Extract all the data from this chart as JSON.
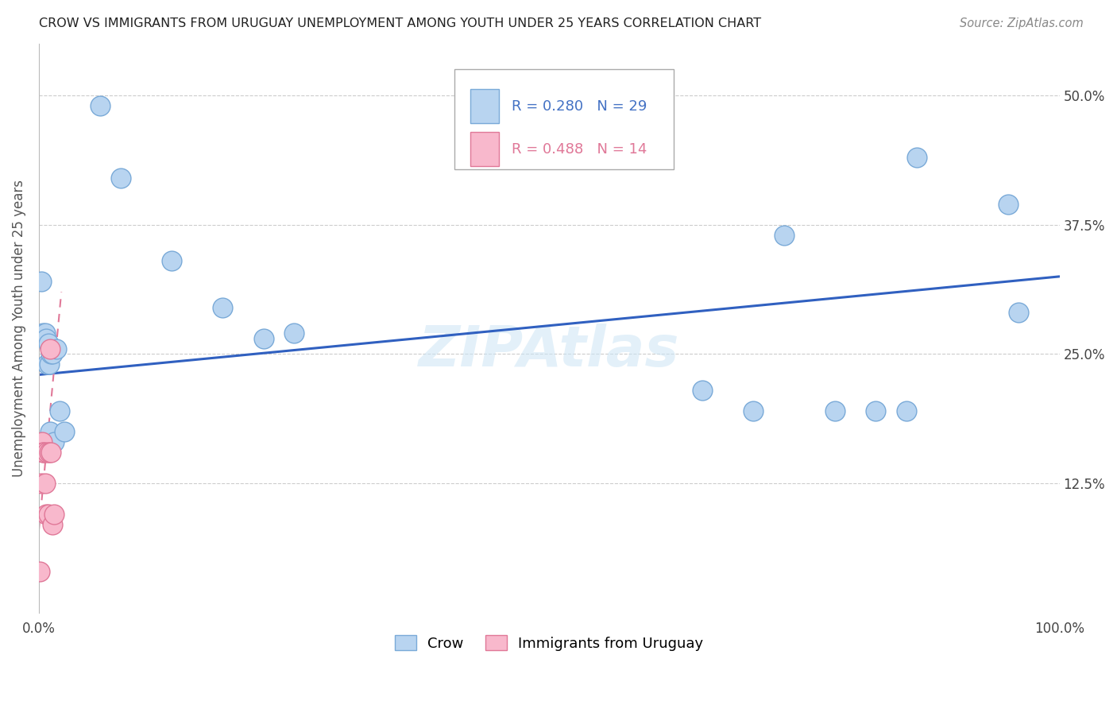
{
  "title": "CROW VS IMMIGRANTS FROM URUGUAY UNEMPLOYMENT AMONG YOUTH UNDER 25 YEARS CORRELATION CHART",
  "source": "Source: ZipAtlas.com",
  "ylabel": "Unemployment Among Youth under 25 years",
  "xlim": [
    0,
    1.0
  ],
  "ylim": [
    0,
    0.55
  ],
  "xticks": [
    0.0,
    0.25,
    0.5,
    0.75,
    1.0
  ],
  "xtick_labels": [
    "0.0%",
    "",
    "",
    "",
    "100.0%"
  ],
  "ytick_labels_right": [
    "12.5%",
    "25.0%",
    "37.5%",
    "50.0%"
  ],
  "ytick_vals_right": [
    0.125,
    0.25,
    0.375,
    0.5
  ],
  "legend_r1": "R = 0.280",
  "legend_n1": "N = 29",
  "legend_r2": "R = 0.488",
  "legend_n2": "N = 14",
  "crow_color": "#b8d4f0",
  "crow_edge_color": "#7aaad8",
  "immigrants_color": "#f8b8cc",
  "immigrants_edge_color": "#e07898",
  "line_color_crow": "#3060c0",
  "line_color_imm": "#e07898",
  "watermark": "ZIPAtlas",
  "background_color": "#ffffff",
  "crow_x": [
    0.002,
    0.004,
    0.006,
    0.007,
    0.008,
    0.009,
    0.01,
    0.011,
    0.012,
    0.013,
    0.015,
    0.017,
    0.02,
    0.025,
    0.06,
    0.08,
    0.13,
    0.18,
    0.22,
    0.25,
    0.65,
    0.7,
    0.73,
    0.78,
    0.82,
    0.85,
    0.86,
    0.95,
    0.96
  ],
  "crow_y": [
    0.32,
    0.27,
    0.27,
    0.265,
    0.24,
    0.26,
    0.24,
    0.175,
    0.25,
    0.25,
    0.165,
    0.255,
    0.195,
    0.175,
    0.49,
    0.42,
    0.34,
    0.295,
    0.265,
    0.27,
    0.215,
    0.195,
    0.365,
    0.195,
    0.195,
    0.195,
    0.44,
    0.395,
    0.29
  ],
  "imm_x": [
    0.001,
    0.002,
    0.003,
    0.004,
    0.005,
    0.006,
    0.007,
    0.008,
    0.009,
    0.01,
    0.011,
    0.012,
    0.013,
    0.015
  ],
  "imm_y": [
    0.04,
    0.125,
    0.165,
    0.155,
    0.155,
    0.125,
    0.095,
    0.155,
    0.095,
    0.155,
    0.255,
    0.155,
    0.085,
    0.095
  ],
  "crow_line_x": [
    0.0,
    1.0
  ],
  "crow_line_y": [
    0.23,
    0.325
  ],
  "imm_line_x": [
    0.0,
    0.022
  ],
  "imm_line_y": [
    0.08,
    0.31
  ]
}
